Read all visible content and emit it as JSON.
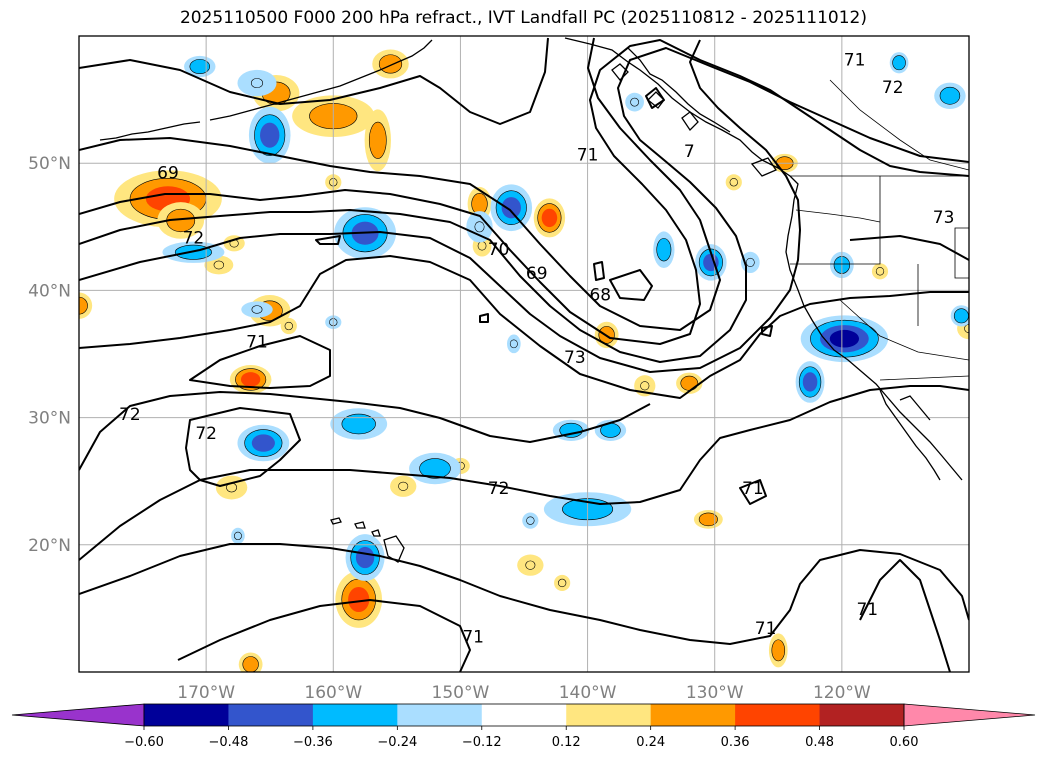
{
  "title": "2025110500 F000 200 hPa refract., IVT Landfall PC (2025110812 - 2025111012)",
  "map": {
    "lon_range": [
      -180,
      -110
    ],
    "lat_range": [
      10,
      60
    ],
    "lon_ticks": [
      {
        "lon": -170,
        "label": "170°W"
      },
      {
        "lon": -160,
        "label": "160°W"
      },
      {
        "lon": -150,
        "label": "150°W"
      },
      {
        "lon": -140,
        "label": "140°W"
      },
      {
        "lon": -130,
        "label": "130°W"
      },
      {
        "lon": -120,
        "label": "120°W"
      }
    ],
    "lat_ticks": [
      {
        "lat": 20,
        "label": "20°N"
      },
      {
        "lat": 30,
        "label": "30°N"
      },
      {
        "lat": 40,
        "label": "40°N"
      },
      {
        "lat": 50,
        "label": "50°N"
      }
    ],
    "contour_labels": [
      {
        "text": "69",
        "lon": -173,
        "lat": 48.8
      },
      {
        "text": "72",
        "lon": -171,
        "lat": 43.7
      },
      {
        "text": "71",
        "lon": -166,
        "lat": 35.5
      },
      {
        "text": "72",
        "lon": -176,
        "lat": 29.8
      },
      {
        "text": "72",
        "lon": -170,
        "lat": 28.3
      },
      {
        "text": "70",
        "lon": -147,
        "lat": 42.8
      },
      {
        "text": "69",
        "lon": -144,
        "lat": 40.9
      },
      {
        "text": "68",
        "lon": -139,
        "lat": 39.2
      },
      {
        "text": "71",
        "lon": -140,
        "lat": 50.2
      },
      {
        "text": "73",
        "lon": -141,
        "lat": 34.3
      },
      {
        "text": "72",
        "lon": -147,
        "lat": 24.0
      },
      {
        "text": "71",
        "lon": -127,
        "lat": 24.0
      },
      {
        "text": "71",
        "lon": -126,
        "lat": 13.0
      },
      {
        "text": "71",
        "lon": -149,
        "lat": 12.3
      },
      {
        "text": "71",
        "lon": -118,
        "lat": 14.5
      },
      {
        "text": "72",
        "lon": -116,
        "lat": 55.5
      },
      {
        "text": "73",
        "lon": -112,
        "lat": 45.3
      },
      {
        "text": "71",
        "lon": -119,
        "lat": 57.7
      },
      {
        "text": "7",
        "lon": -132,
        "lat": 50.5
      }
    ]
  },
  "colorbar": {
    "levels": [
      -0.6,
      -0.48,
      -0.36,
      -0.24,
      -0.12,
      0.12,
      0.24,
      0.36,
      0.48,
      0.6
    ],
    "tick_labels": [
      "−0.60",
      "−0.48",
      "−0.36",
      "−0.24",
      "−0.12",
      "0.12",
      "0.24",
      "0.36",
      "0.48",
      "0.60"
    ],
    "colors": [
      "#9933cc",
      "#000099",
      "#3355cc",
      "#00bbff",
      "#aadeff",
      "#ffffff",
      "#ffe680",
      "#ff9900",
      "#ff4400",
      "#b22222",
      "#ff88aa"
    ]
  },
  "blobs": [
    {
      "lon": -173,
      "lat": 47.2,
      "rx": 4.0,
      "ry": 2.0,
      "v": 0.4
    },
    {
      "lon": -172,
      "lat": 45.5,
      "rx": 1.6,
      "ry": 1.2,
      "v": 0.28
    },
    {
      "lon": -180,
      "lat": 38.8,
      "rx": 0.8,
      "ry": 0.8,
      "v": 0.3
    },
    {
      "lon": -160,
      "lat": 53.7,
      "rx": 3.0,
      "ry": 1.4,
      "v": 0.3
    },
    {
      "lon": -156.5,
      "lat": 51.8,
      "rx": 0.8,
      "ry": 2.2,
      "v": 0.3
    },
    {
      "lon": -164.5,
      "lat": 55.5,
      "rx": 1.6,
      "ry": 1.2,
      "v": 0.32
    },
    {
      "lon": -165,
      "lat": 38.4,
      "rx": 1.4,
      "ry": 1.0,
      "v": 0.3
    },
    {
      "lon": -166.5,
      "lat": 33.0,
      "rx": 1.4,
      "ry": 0.9,
      "v": 0.4
    },
    {
      "lon": -160,
      "lat": 48.5,
      "rx": 0.4,
      "ry": 0.4,
      "v": 0.15
    },
    {
      "lon": -158,
      "lat": 15.7,
      "rx": 1.6,
      "ry": 2.0,
      "v": 0.42
    },
    {
      "lon": -166.5,
      "lat": 10.6,
      "rx": 0.7,
      "ry": 0.7,
      "v": 0.3
    },
    {
      "lon": -148.5,
      "lat": 46.8,
      "rx": 0.7,
      "ry": 1.1,
      "v": 0.3
    },
    {
      "lon": -143,
      "lat": 45.7,
      "rx": 1.0,
      "ry": 1.3,
      "v": 0.36
    },
    {
      "lon": -138.5,
      "lat": 36.5,
      "rx": 0.7,
      "ry": 0.8,
      "v": 0.28
    },
    {
      "lon": -132,
      "lat": 32.7,
      "rx": 0.8,
      "ry": 0.6,
      "v": 0.3
    },
    {
      "lon": -130.5,
      "lat": 22.0,
      "rx": 0.9,
      "ry": 0.5,
      "v": 0.28
    },
    {
      "lon": -125,
      "lat": 11.7,
      "rx": 0.5,
      "ry": 1.1,
      "v": 0.3
    },
    {
      "lon": -168,
      "lat": 24.5,
      "rx": 1.0,
      "ry": 0.7,
      "v": 0.2
    },
    {
      "lon": -154.5,
      "lat": 24.6,
      "rx": 0.8,
      "ry": 0.6,
      "v": 0.18
    },
    {
      "lon": -135.5,
      "lat": 32.5,
      "rx": 0.6,
      "ry": 0.6,
      "v": 0.15
    },
    {
      "lon": -150,
      "lat": 26.2,
      "rx": 0.5,
      "ry": 0.4,
      "v": 0.15
    },
    {
      "lon": -144.5,
      "lat": 18.4,
      "rx": 0.8,
      "ry": 0.6,
      "v": 0.18
    },
    {
      "lon": -142,
      "lat": 17.0,
      "rx": 0.4,
      "ry": 0.4,
      "v": 0.18
    },
    {
      "lon": -155.5,
      "lat": 57.8,
      "rx": 1.2,
      "ry": 0.9,
      "v": 0.3
    },
    {
      "lon": -148.3,
      "lat": 43.5,
      "rx": 0.5,
      "ry": 0.6,
      "v": 0.2
    },
    {
      "lon": -167.8,
      "lat": 43.7,
      "rx": 0.6,
      "ry": 0.4,
      "v": 0.18
    },
    {
      "lon": -169,
      "lat": 42.0,
      "rx": 0.9,
      "ry": 0.5,
      "v": 0.2
    },
    {
      "lon": -124.5,
      "lat": 50.0,
      "rx": 0.8,
      "ry": 0.5,
      "v": 0.24
    },
    {
      "lon": -128.5,
      "lat": 48.5,
      "rx": 0.4,
      "ry": 0.4,
      "v": 0.18
    },
    {
      "lon": -117,
      "lat": 41.5,
      "rx": 0.4,
      "ry": 0.4,
      "v": 0.18
    },
    {
      "lon": -110,
      "lat": 37.0,
      "rx": 0.7,
      "ry": 0.6,
      "v": 0.2
    },
    {
      "lon": -163.5,
      "lat": 37.2,
      "rx": 0.4,
      "ry": 0.4,
      "v": 0.15
    },
    {
      "lon": -166,
      "lat": 56.3,
      "rx": 1.3,
      "ry": 0.8,
      "v": -0.2
    },
    {
      "lon": -165,
      "lat": 52.2,
      "rx": 1.4,
      "ry": 2.0,
      "v": -0.42
    },
    {
      "lon": -157.5,
      "lat": 44.5,
      "rx": 2.2,
      "ry": 1.8,
      "v": -0.45
    },
    {
      "lon": -171,
      "lat": 43.0,
      "rx": 2.2,
      "ry": 0.6,
      "v": -0.28
    },
    {
      "lon": -166,
      "lat": 38.5,
      "rx": 1.0,
      "ry": 0.4,
      "v": -0.15
    },
    {
      "lon": -165.5,
      "lat": 28.0,
      "rx": 1.8,
      "ry": 1.2,
      "v": -0.4
    },
    {
      "lon": -158,
      "lat": 29.5,
      "rx": 2.0,
      "ry": 1.0,
      "v": -0.3
    },
    {
      "lon": -152,
      "lat": 26.0,
      "rx": 1.8,
      "ry": 1.0,
      "v": -0.3
    },
    {
      "lon": -146,
      "lat": 46.5,
      "rx": 1.4,
      "ry": 1.6,
      "v": -0.42
    },
    {
      "lon": -148.5,
      "lat": 45.0,
      "rx": 0.8,
      "ry": 1.0,
      "v": -0.18
    },
    {
      "lon": -140,
      "lat": 22.8,
      "rx": 3.2,
      "ry": 1.1,
      "v": -0.35
    },
    {
      "lon": -141.3,
      "lat": 29.0,
      "rx": 1.2,
      "ry": 0.6,
      "v": -0.24
    },
    {
      "lon": -138.2,
      "lat": 29.0,
      "rx": 1.0,
      "ry": 0.6,
      "v": -0.24
    },
    {
      "lon": -157.5,
      "lat": 19.0,
      "rx": 1.3,
      "ry": 1.6,
      "v": -0.4
    },
    {
      "lon": -134,
      "lat": 43.2,
      "rx": 0.6,
      "ry": 1.2,
      "v": -0.3
    },
    {
      "lon": -130.3,
      "lat": 42.2,
      "rx": 1.0,
      "ry": 1.2,
      "v": -0.4
    },
    {
      "lon": -127.2,
      "lat": 42.2,
      "rx": 0.5,
      "ry": 0.6,
      "v": -0.2
    },
    {
      "lon": -119.8,
      "lat": 36.2,
      "rx": 3.2,
      "ry": 1.6,
      "v": -0.5
    },
    {
      "lon": -122.5,
      "lat": 32.8,
      "rx": 0.9,
      "ry": 1.4,
      "v": -0.4
    },
    {
      "lon": -120,
      "lat": 42.0,
      "rx": 0.7,
      "ry": 0.8,
      "v": -0.32
    },
    {
      "lon": -111.5,
      "lat": 55.3,
      "rx": 1.0,
      "ry": 0.8,
      "v": -0.35
    },
    {
      "lon": -115.5,
      "lat": 57.9,
      "rx": 0.5,
      "ry": 0.6,
      "v": -0.3
    },
    {
      "lon": -110.6,
      "lat": 38.0,
      "rx": 0.6,
      "ry": 0.6,
      "v": -0.25
    },
    {
      "lon": -170.5,
      "lat": 57.6,
      "rx": 1.0,
      "ry": 0.6,
      "v": -0.35
    },
    {
      "lon": -144.5,
      "lat": 21.9,
      "rx": 0.4,
      "ry": 0.4,
      "v": -0.2
    },
    {
      "lon": -160,
      "lat": 37.5,
      "rx": 0.4,
      "ry": 0.3,
      "v": -0.15
    },
    {
      "lon": -136.3,
      "lat": 54.8,
      "rx": 0.5,
      "ry": 0.5,
      "v": -0.2
    },
    {
      "lon": -145.8,
      "lat": 35.8,
      "rx": 0.3,
      "ry": 0.5,
      "v": -0.2
    },
    {
      "lon": -167.5,
      "lat": 20.7,
      "rx": 0.3,
      "ry": 0.4,
      "v": -0.2
    }
  ]
}
